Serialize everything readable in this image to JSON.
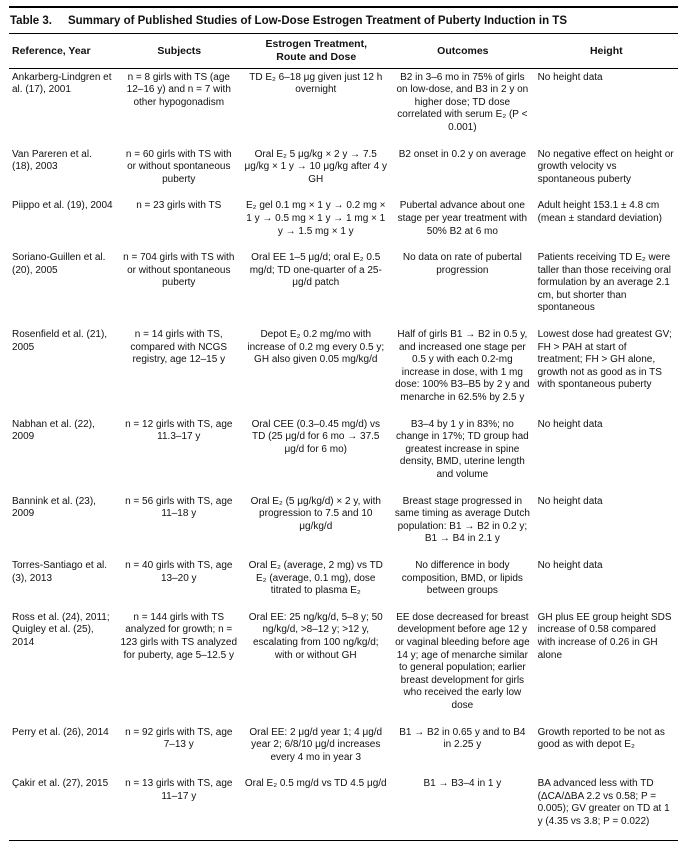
{
  "title": {
    "label": "Table 3.",
    "text": "Summary of Published Studies of Low-Dose Estrogen Treatment of Puberty Induction in TS"
  },
  "table": {
    "columns": [
      "Reference, Year",
      "Subjects",
      "Estrogen Treatment,\nRoute and Dose",
      "Outcomes",
      "Height"
    ],
    "rows": [
      {
        "cells": [
          "Ankarberg-Lindgren et al. (17), 2001",
          "n = 8 girls with TS (age 12–16 y) and n = 7 with other hypogonadism",
          "TD E₂ 6–18 μg given just 12 h overnight",
          "B2 in 3–6 mo in 75% of girls on low-dose, and B3 in 2 y on higher dose; TD dose correlated with serum E₂ (P < 0.001)",
          "No height data"
        ]
      },
      {
        "cells": [
          "Van Pareren et al. (18), 2003",
          "n = 60 girls with TS with or without spontaneous puberty",
          "Oral E₂ 5 μg/kg × 2 y → 7.5 μg/kg × 1 y → 10 μg/kg after 4 y GH",
          "B2 onset in 0.2 y on average",
          "No negative effect on height or growth velocity vs spontaneous puberty"
        ]
      },
      {
        "cells": [
          "Piippo et al. (19), 2004",
          "n = 23 girls with TS",
          "E₂ gel 0.1 mg × 1 y → 0.2 mg × 1 y → 0.5 mg × 1 y → 1 mg × 1 y → 1.5 mg × 1 y",
          "Pubertal advance about one stage per year treatment with 50% B2 at 6 mo",
          "Adult height 153.1 ± 4.8 cm (mean ± standard deviation)"
        ]
      },
      {
        "cells": [
          "Soriano-Guillen et al. (20), 2005",
          "n = 704 girls with TS with or without spontaneous puberty",
          "Oral EE 1–5 μg/d; oral E₂ 0.5 mg/d; TD one-quarter of a 25-μg/d patch",
          "No data on rate of pubertal progression",
          "Patients receiving TD E₂ were taller than those receiving oral formulation by an average 2.1 cm, but shorter than spontaneous"
        ]
      },
      {
        "cells": [
          "Rosenfield et al. (21), 2005",
          "n = 14 girls with TS, compared with NCGS registry, age 12–15 y",
          "Depot E₂ 0.2 mg/mo with increase of 0.2 mg every 0.5 y; GH also given 0.05 mg/kg/d",
          "Half of girls B1 → B2 in 0.5 y, and increased one stage per 0.5 y with each 0.2-mg increase in dose, with 1 mg dose: 100% B3–B5 by 2 y and menarche in 62.5% by 2.5 y",
          "Lowest dose had greatest GV; FH > PAH at start of treatment; FH > GH alone, growth not as good as in TS with spontaneous puberty"
        ]
      },
      {
        "cells": [
          "Nabhan et al. (22), 2009",
          "n = 12 girls with TS, age 11.3–17 y",
          "Oral CEE (0.3–0.45 mg/d) vs TD (25 μg/d for 6 mo → 37.5 μg/d for 6 mo)",
          "B3–4 by 1 y in 83%; no change in 17%; TD group had greatest increase in spine density, BMD, uterine length and volume",
          "No height data"
        ]
      },
      {
        "cells": [
          "Bannink et al. (23), 2009",
          "n = 56 girls with TS, age 11–18 y",
          "Oral E₂ (5 μg/kg/d) × 2 y, with progression to 7.5 and 10 μg/kg/d",
          "Breast stage progressed in same timing as average Dutch population: B1 → B2 in 0.2 y; B1 → B4 in 2.1 y",
          "No height data"
        ]
      },
      {
        "cells": [
          "Torres-Santiago et al. (3), 2013",
          "n = 40 girls with TS, age 13–20 y",
          "Oral E₂ (average, 2 mg) vs TD E₂ (average, 0.1 mg), dose titrated to plasma E₂",
          "No difference in body composition, BMD, or lipids between groups",
          "No height data"
        ]
      },
      {
        "cells": [
          "Ross et al. (24), 2011; Quigley et al. (25), 2014",
          "n = 144 girls with TS analyzed for growth; n = 123 girls with TS analyzed for puberty, age 5–12.5 y",
          "Oral EE: 25 ng/kg/d, 5–8 y; 50 ng/kg/d, >8–12 y; >12 y, escalating from 100 ng/kg/d; with or without GH",
          "EE dose decreased for breast development before age 12 y or vaginal bleeding before age 14 y; age of menarche similar to general population; earlier breast development for girls who received the early low dose",
          "GH plus EE group height SDS increase of 0.58 compared with increase of 0.26 in GH alone"
        ]
      },
      {
        "cells": [
          "Perry et al. (26), 2014",
          "n = 92 girls with TS, age 7–13 y",
          "Oral EE: 2 μg/d year 1; 4 μg/d year 2; 6/8/10 μg/d increases every 4 mo in year 3",
          "B1 → B2 in 0.65 y and to B4 in 2.25 y",
          "Growth reported to be not as good as with depot E₂"
        ]
      },
      {
        "cells": [
          "Çakir et al. (27), 2015",
          "n = 13 girls with TS, age 11–17 y",
          "Oral E₂ 0.5 mg/d vs TD 4.5 μg/d",
          "B1 → B3–4 in 1 y",
          "BA advanced less with TD (ΔCA/ΔBA 2.2 vs 0.58; P = 0.005); GV greater on TD at 1 y (4.35 vs 3.8; P = 0.022)"
        ]
      }
    ]
  }
}
